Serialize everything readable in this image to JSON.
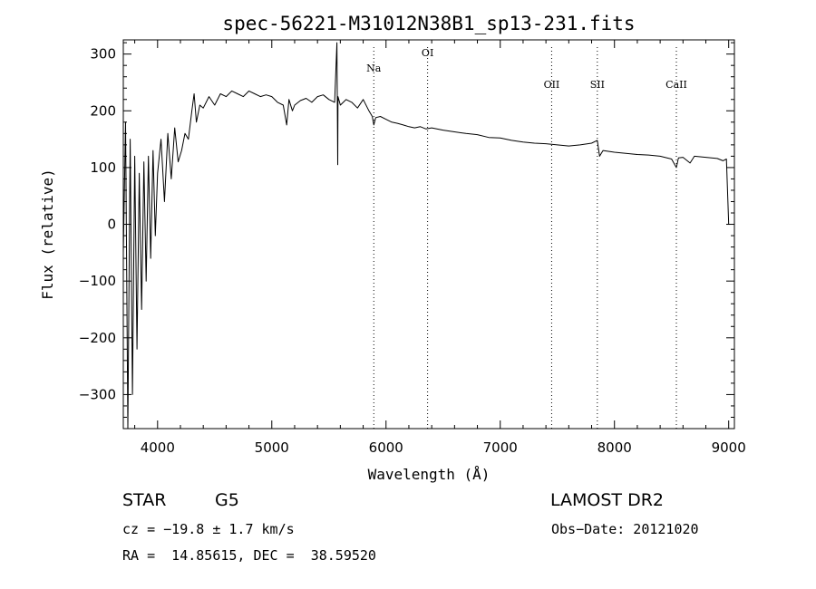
{
  "chart_data": {
    "type": "line",
    "title": "spec-56221-M31012N38B1_sp13-231.fits",
    "xlabel": "Wavelength (Å)",
    "ylabel": "Flux (relative)",
    "xlim": [
      3700,
      9050
    ],
    "ylim": [
      -360,
      325
    ],
    "xticks": [
      4000,
      5000,
      6000,
      7000,
      8000,
      9000
    ],
    "yticks": [
      300,
      200,
      100,
      0,
      -100,
      -200,
      -300
    ],
    "grid": false,
    "line_color": "#000000",
    "series": [
      {
        "x": [
          3700,
          3720,
          3740,
          3760,
          3780,
          3800,
          3820,
          3840,
          3860,
          3880,
          3900,
          3920,
          3940,
          3960,
          3980,
          4000,
          4030,
          4060,
          4090,
          4120,
          4150,
          4180,
          4210,
          4240,
          4270,
          4300,
          4320,
          4340,
          4370,
          4400,
          4450,
          4500,
          4550,
          4600,
          4650,
          4700,
          4750,
          4800,
          4850,
          4900,
          4950,
          5000,
          5050,
          5100,
          5130,
          5150,
          5180,
          5200,
          5250,
          5300,
          5350,
          5400,
          5450,
          5500,
          5550,
          5570,
          5577,
          5580,
          5600,
          5650,
          5700,
          5750,
          5800,
          5850,
          5880,
          5893,
          5910,
          5950,
          6000,
          6050,
          6100,
          6150,
          6200,
          6250,
          6300,
          6350,
          6400,
          6500,
          6600,
          6700,
          6800,
          6900,
          7000,
          7100,
          7200,
          7300,
          7400,
          7500,
          7600,
          7700,
          7800,
          7850,
          7870,
          7900,
          8000,
          8100,
          8200,
          8300,
          8400,
          8500,
          8542,
          8560,
          8600,
          8662,
          8700,
          8800,
          8900,
          8950,
          8980,
          9000,
          9010
        ],
        "y": [
          -50,
          180,
          -360,
          150,
          -300,
          120,
          -220,
          90,
          -150,
          110,
          -100,
          120,
          -60,
          130,
          -20,
          90,
          150,
          40,
          160,
          80,
          170,
          110,
          130,
          160,
          150,
          200,
          230,
          180,
          210,
          205,
          225,
          210,
          230,
          225,
          235,
          230,
          225,
          235,
          230,
          225,
          228,
          225,
          215,
          210,
          175,
          220,
          200,
          210,
          218,
          222,
          215,
          225,
          228,
          220,
          215,
          320,
          105,
          225,
          210,
          220,
          215,
          205,
          220,
          200,
          190,
          175,
          188,
          190,
          185,
          180,
          178,
          175,
          172,
          170,
          172,
          168,
          170,
          166,
          163,
          160,
          158,
          153,
          152,
          148,
          145,
          143,
          142,
          140,
          138,
          140,
          143,
          148,
          120,
          130,
          127,
          125,
          123,
          122,
          120,
          115,
          100,
          117,
          118,
          108,
          120,
          118,
          116,
          112,
          115,
          0,
          0
        ]
      }
    ],
    "lines": [
      {
        "label": "Na",
        "x": 5893
      },
      {
        "label": "OI",
        "x": 6364
      },
      {
        "label": "OII",
        "x": 7450
      },
      {
        "label": "SII",
        "x": 7850
      },
      {
        "label": "CaII",
        "x": 8542
      }
    ]
  },
  "info": {
    "object": "STAR",
    "subclass": "G5",
    "survey": "LAMOST DR2",
    "cz": "cz = −19.8 ± 1.7 km/s",
    "obs_date": "Obs−Date: 20121020",
    "coords": "RA =  14.85615, DEC =  38.59520"
  }
}
